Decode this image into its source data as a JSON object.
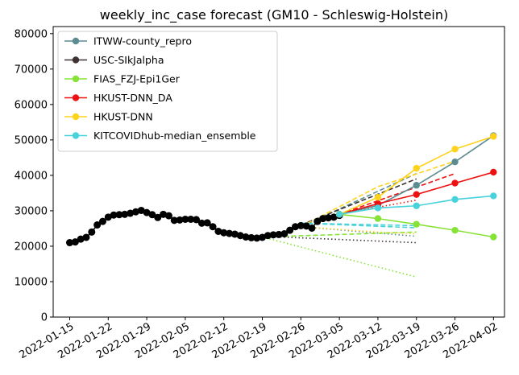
{
  "chart_data": {
    "type": "line",
    "title": "weekly_inc_case forecast (GM10 - Schleswig-Holstein)",
    "xlabel": "",
    "ylabel": "",
    "x_tick_labels": [
      "2022-01-15",
      "2022-01-22",
      "2022-01-29",
      "2022-02-05",
      "2022-02-12",
      "2022-02-19",
      "2022-02-26",
      "2022-03-05",
      "2022-03-12",
      "2022-03-19",
      "2022-03-26",
      "2022-04-02"
    ],
    "y_ticks": [
      0,
      10000,
      20000,
      30000,
      40000,
      50000,
      60000,
      70000,
      80000
    ],
    "xlim": [
      "2022-01-12",
      "2022-04-04"
    ],
    "ylim": [
      0,
      82000
    ],
    "grid": false,
    "legend_position": "top-left",
    "truth": {
      "color": "#000000",
      "x": [
        "2022-01-15",
        "2022-01-16",
        "2022-01-17",
        "2022-01-18",
        "2022-01-19",
        "2022-01-20",
        "2022-01-21",
        "2022-01-22",
        "2022-01-23",
        "2022-01-24",
        "2022-01-25",
        "2022-01-26",
        "2022-01-27",
        "2022-01-28",
        "2022-01-29",
        "2022-01-30",
        "2022-01-31",
        "2022-02-01",
        "2022-02-02",
        "2022-02-03",
        "2022-02-04",
        "2022-02-05",
        "2022-02-06",
        "2022-02-07",
        "2022-02-08",
        "2022-02-09",
        "2022-02-10",
        "2022-02-11",
        "2022-02-12",
        "2022-02-13",
        "2022-02-14",
        "2022-02-15",
        "2022-02-16",
        "2022-02-17",
        "2022-02-18",
        "2022-02-19",
        "2022-02-20",
        "2022-02-21",
        "2022-02-22",
        "2022-02-23",
        "2022-02-24",
        "2022-02-25",
        "2022-02-26",
        "2022-02-27",
        "2022-02-28",
        "2022-03-01",
        "2022-03-02",
        "2022-03-03",
        "2022-03-04",
        "2022-03-05"
      ],
      "y": [
        21000,
        21200,
        22000,
        22500,
        24000,
        26000,
        27000,
        28200,
        28800,
        28900,
        29000,
        29300,
        29700,
        30100,
        29500,
        28900,
        28100,
        29000,
        28600,
        27300,
        27400,
        27600,
        27600,
        27500,
        26500,
        26600,
        25500,
        24200,
        23800,
        23600,
        23400,
        23000,
        22600,
        22400,
        22300,
        22500,
        23000,
        23200,
        23300,
        23500,
        24500,
        25500,
        25800,
        25700,
        25100,
        27000,
        27800,
        28000,
        28200,
        28700
      ]
    },
    "series": [
      {
        "name": "ITWW-county_repro",
        "color": "#5b8c92",
        "x": [
          "2022-03-05",
          "2022-03-12",
          "2022-03-19",
          "2022-03-26",
          "2022-04-02"
        ],
        "y": [
          29000,
          31500,
          37200,
          43800,
          51200
        ],
        "quantile_lower": {
          "x": [
            "2022-02-26",
            "2022-03-19"
          ],
          "y": [
            25500,
            22800
          ],
          "style": "dotted"
        },
        "quantile_upper": {
          "x": [
            "2022-02-26",
            "2022-03-19"
          ],
          "y": [
            25500,
            40500
          ],
          "style": "dashed"
        }
      },
      {
        "name": "USC-SIkJalpha",
        "color": "#3e3232",
        "x": [],
        "y": [],
        "quantile_lower": {
          "x": [
            "2022-02-19",
            "2022-03-19"
          ],
          "y": [
            22800,
            21000
          ],
          "style": "dotted"
        },
        "quantile_upper": {
          "x": [
            "2022-02-26",
            "2022-03-19"
          ],
          "y": [
            26000,
            39000
          ],
          "style": "dashed"
        }
      },
      {
        "name": "FIAS_FZJ-Epi1Ger",
        "color": "#86e236",
        "x": [
          "2022-03-05",
          "2022-03-12",
          "2022-03-19",
          "2022-03-26",
          "2022-04-02"
        ],
        "y": [
          29000,
          27800,
          26200,
          24500,
          22600
        ],
        "quantile_lower": {
          "x": [
            "2022-02-19",
            "2022-03-19"
          ],
          "y": [
            22600,
            11300
          ],
          "style": "dotted"
        },
        "quantile_upper": {
          "x": [
            "2022-02-19",
            "2022-03-19"
          ],
          "y": [
            22600,
            24000
          ],
          "style": "dashed"
        }
      },
      {
        "name": "HKUST-DNN_DA",
        "color": "#ee1111",
        "x": [
          "2022-03-05",
          "2022-03-12",
          "2022-03-19",
          "2022-03-26",
          "2022-04-02"
        ],
        "y": [
          29000,
          32000,
          34600,
          37800,
          40900
        ],
        "quantile_lower": {
          "x": [
            "2022-03-05",
            "2022-03-19"
          ],
          "y": [
            29000,
            33000
          ],
          "style": "dotted"
        },
        "quantile_upper": {
          "x": [
            "2022-03-05",
            "2022-03-26"
          ],
          "y": [
            29000,
            40500
          ],
          "style": "dashed"
        }
      },
      {
        "name": "HKUST-DNN",
        "color": "#ffd21c",
        "x": [
          "2022-03-05",
          "2022-03-12",
          "2022-03-19",
          "2022-03-26",
          "2022-04-02"
        ],
        "y": [
          29000,
          33800,
          42000,
          47400,
          51000
        ],
        "quantile_lower": {
          "x": [
            "2022-02-26",
            "2022-03-12",
            "2022-03-19"
          ],
          "y": [
            25500,
            24000,
            23500
          ],
          "style": "dotted"
        },
        "quantile_upper": {
          "x": [
            "2022-02-26",
            "2022-03-12",
            "2022-03-26"
          ],
          "y": [
            25500,
            36800,
            44000
          ],
          "style": "dashed"
        }
      },
      {
        "name": "KITCOVIDhub-median_ensemble",
        "color": "#48d2dc",
        "x": [
          "2022-03-05",
          "2022-03-12",
          "2022-03-19",
          "2022-03-26",
          "2022-04-02"
        ],
        "y": [
          29000,
          30800,
          31400,
          33200,
          34200
        ],
        "quantile_lower": {
          "x": [
            "2022-02-26",
            "2022-03-19"
          ],
          "y": [
            26500,
            25200
          ],
          "style": "dashed"
        },
        "quantile_upper": {
          "x": [
            "2022-02-26",
            "2022-03-19"
          ],
          "y": [
            26500,
            25800
          ],
          "style": "dashed"
        }
      }
    ]
  }
}
